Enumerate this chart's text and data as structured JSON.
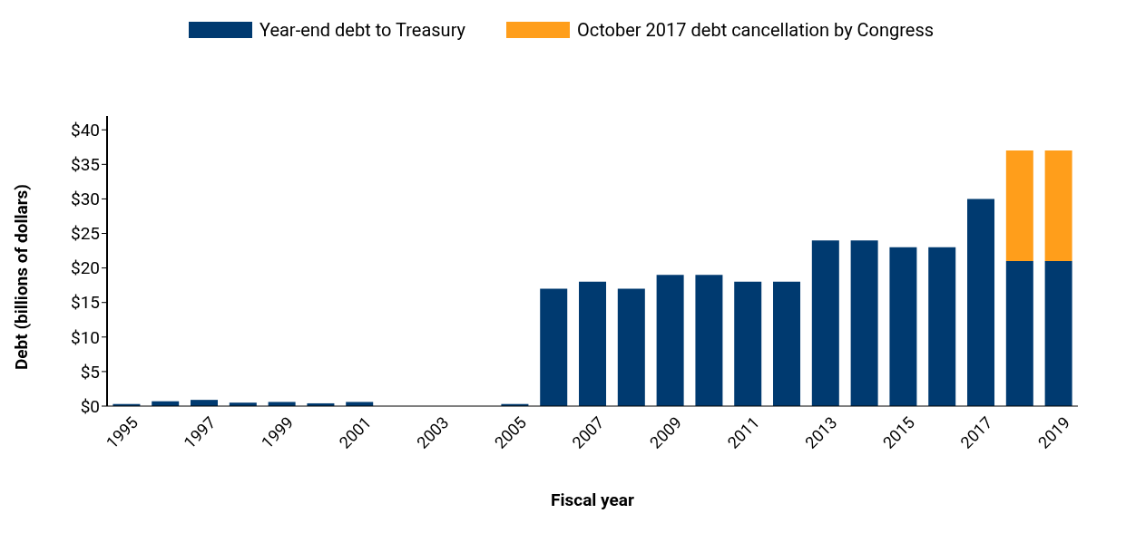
{
  "chart_data": {
    "type": "bar",
    "stacked": true,
    "xlabel": "Fiscal year",
    "ylabel": "Debt (billions of dollars)",
    "categories": [
      "1995",
      null,
      "1997",
      null,
      "1999",
      null,
      "2001",
      null,
      "2003",
      null,
      "2005",
      null,
      "2007",
      null,
      "2009",
      null,
      "2011",
      null,
      "2013",
      null,
      "2015",
      null,
      "2017",
      null,
      "2019"
    ],
    "series": [
      {
        "name": "Year-end debt to Treasury",
        "color": "#003a70",
        "values": [
          0.3,
          0.7,
          0.9,
          0.5,
          0.6,
          0.4,
          0.6,
          0,
          0,
          0,
          0.3,
          17,
          18,
          17,
          19,
          19,
          18,
          18,
          24,
          24,
          23,
          23,
          30,
          21,
          21
        ]
      },
      {
        "name": "October 2017 debt cancellation by Congress",
        "color": "#ff9e1b",
        "values": [
          null,
          null,
          null,
          null,
          null,
          null,
          null,
          null,
          null,
          null,
          null,
          null,
          null,
          null,
          null,
          null,
          null,
          null,
          null,
          null,
          null,
          null,
          null,
          16,
          16
        ]
      }
    ],
    "ylim": [
      0,
      42
    ],
    "yticks": [
      {
        "value": 0,
        "label": "$0"
      },
      {
        "value": 5,
        "label": "$5"
      },
      {
        "value": 10,
        "label": "$10"
      },
      {
        "value": 15,
        "label": "$15"
      },
      {
        "value": 20,
        "label": "$20"
      },
      {
        "value": 25,
        "label": "$25"
      },
      {
        "value": 30,
        "label": "$30"
      },
      {
        "value": 35,
        "label": "$35"
      },
      {
        "value": 40,
        "label": "$40"
      }
    ],
    "grid": false,
    "legend": "top left"
  }
}
